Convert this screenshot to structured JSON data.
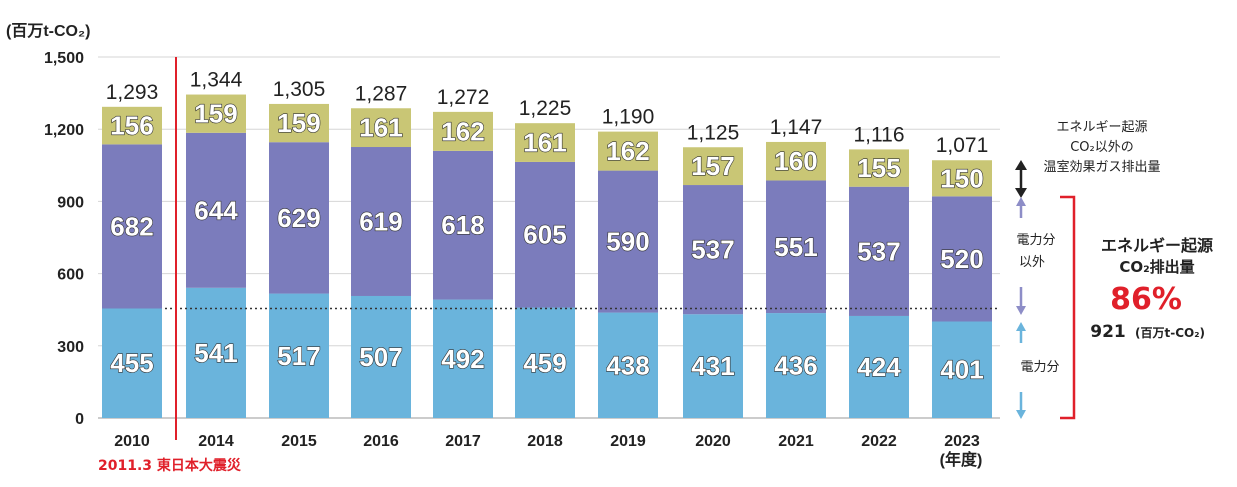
{
  "chart_data": {
    "type": "bar",
    "stacked": true,
    "y_unit_label": "(百万t-CO₂)",
    "ylim": [
      0,
      1500
    ],
    "yticks": [
      0,
      300,
      600,
      900,
      1200,
      1500
    ],
    "ytick_labels": [
      "0",
      "300",
      "600",
      "900",
      "1,200",
      "1,500"
    ],
    "categories": [
      "2010",
      "2014",
      "2015",
      "2016",
      "2017",
      "2018",
      "2019",
      "2020",
      "2021",
      "2022",
      "2023"
    ],
    "x_unit_label": "(年度)",
    "totals": [
      1293,
      1344,
      1305,
      1287,
      1272,
      1225,
      1190,
      1125,
      1147,
      1116,
      1071
    ],
    "total_labels": [
      "1,293",
      "1,344",
      "1,305",
      "1,287",
      "1,272",
      "1,225",
      "1,190",
      "1,125",
      "1,147",
      "1,116",
      "1,071"
    ],
    "series": [
      {
        "name": "電力分",
        "color": "#6ab4dc",
        "values": [
          455,
          541,
          517,
          507,
          492,
          459,
          438,
          431,
          436,
          424,
          401
        ]
      },
      {
        "name": "電力分以外",
        "color": "#7b7cbc",
        "values": [
          682,
          644,
          629,
          619,
          618,
          605,
          590,
          537,
          551,
          537,
          520
        ]
      },
      {
        "name": "エネルギー起源CO₂以外の温室効果ガス排出量",
        "color": "#c9c675",
        "values": [
          156,
          159,
          159,
          161,
          162,
          161,
          162,
          157,
          160,
          155,
          150
        ]
      }
    ],
    "reference_line": {
      "value": 455,
      "style": "dotted"
    },
    "event_marker": {
      "after_category": "2010",
      "label": "2011.3 東日本大震災",
      "color": "#e0202a"
    }
  },
  "annotations": {
    "nonenergy_label_lines": [
      "エネルギー起源",
      "CO₂以外の",
      "温室効果ガス排出量"
    ],
    "nonpower_label_lines": [
      "電力分",
      "以外"
    ],
    "power_label": "電力分",
    "energy_title_lines": [
      "エネルギー起源",
      "CO₂排出量"
    ],
    "energy_percent": "86%",
    "energy_amount": "921",
    "energy_amount_unit": "(百万t-CO₂)"
  }
}
